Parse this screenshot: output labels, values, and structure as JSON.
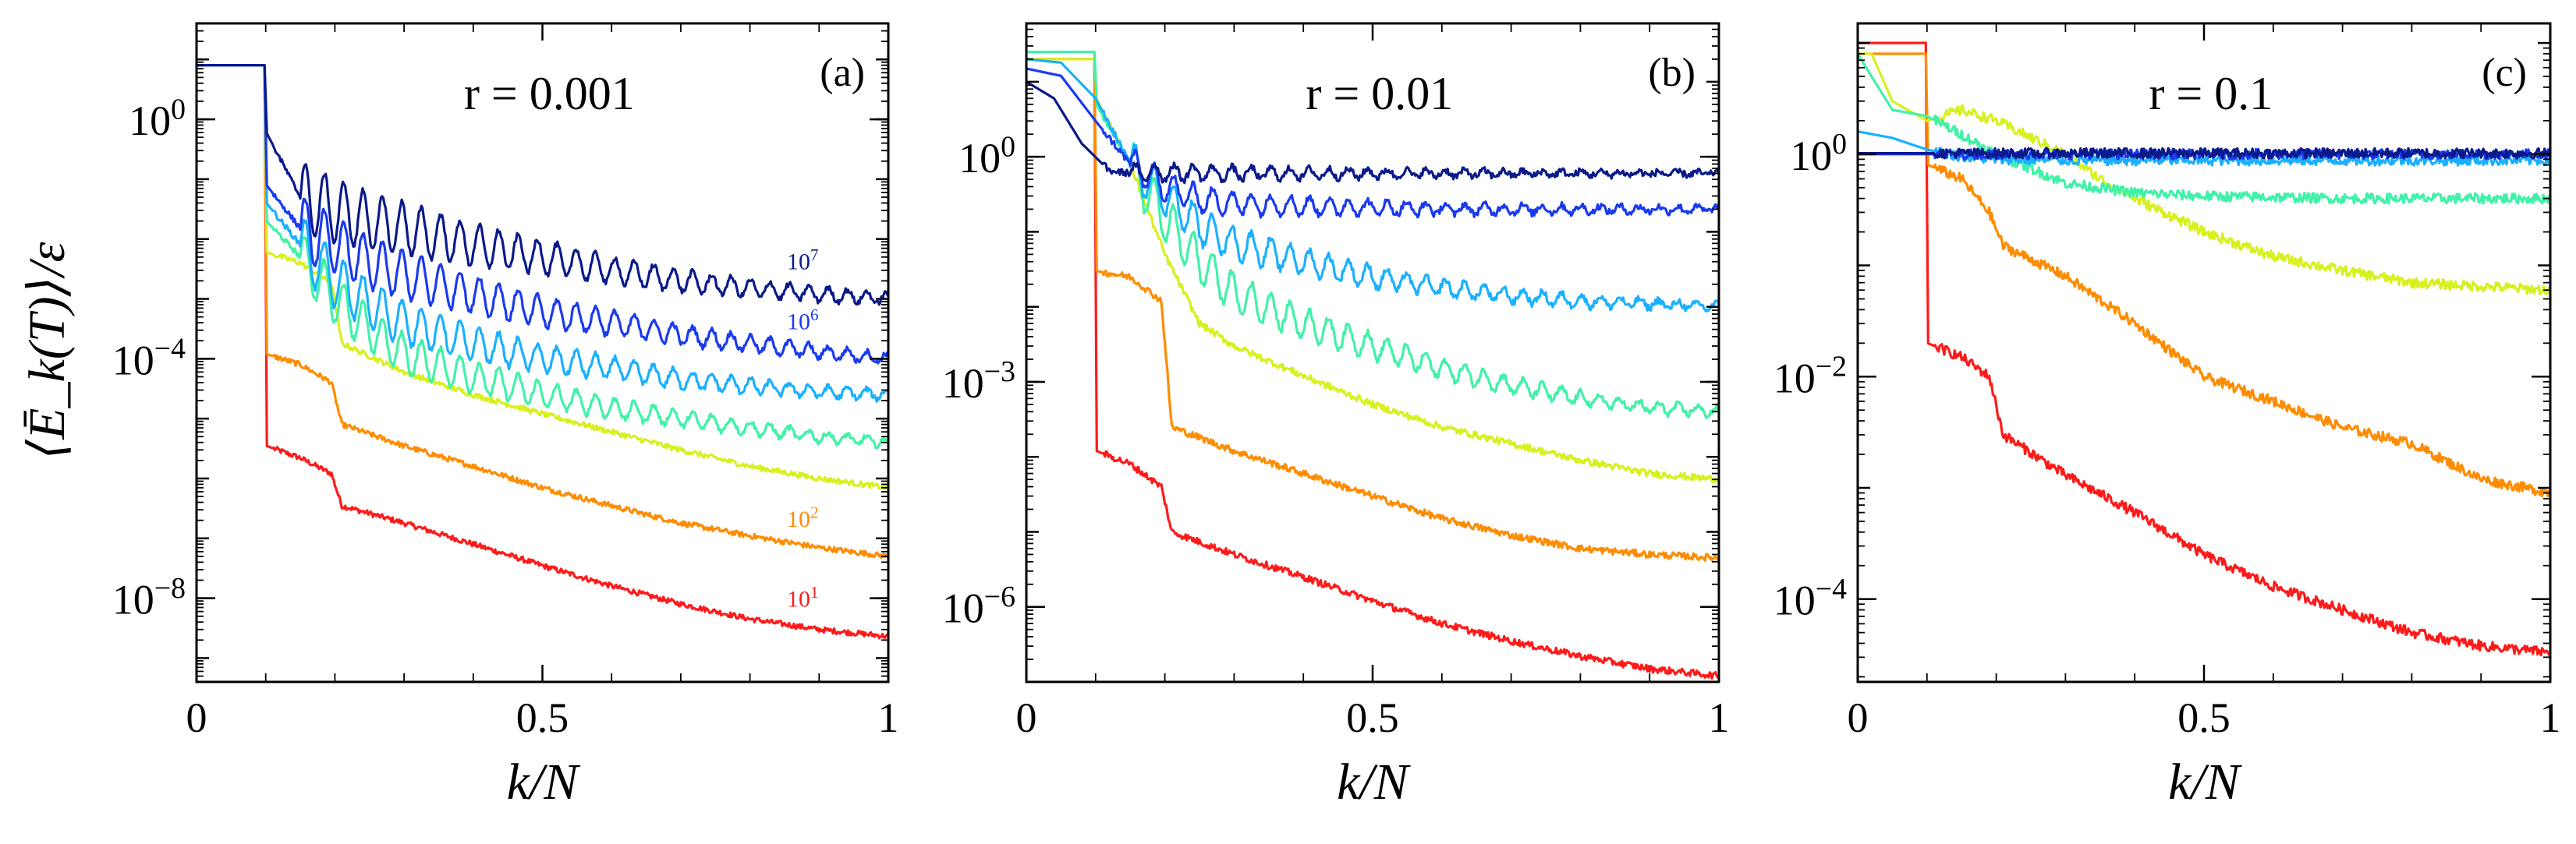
{
  "ylabel": "⟨Ē_k(T)⟩/ε",
  "chart_data": [
    {
      "type": "line",
      "panel": "(a)",
      "param": "r = 0.001",
      "xlabel": "k/N",
      "xlim": [
        0,
        1
      ],
      "xticks": [
        {
          "v": 0,
          "t": "0"
        },
        {
          "v": 0.5,
          "t": "0.5"
        },
        {
          "v": 1,
          "t": "1"
        }
      ],
      "ylog": true,
      "ylim": [
        4e-10,
        40
      ],
      "yticks": [
        {
          "e": 0,
          "t": "10^0"
        },
        {
          "e": -4,
          "t": "10^-4"
        },
        {
          "e": -8,
          "t": "10^-8"
        }
      ],
      "series": [
        {
          "color": "#ff1a1a",
          "label": "10^1",
          "x": [
            0,
            0.099,
            0.101,
            0.15,
            0.195,
            0.21,
            0.3,
            0.4,
            0.5,
            0.6,
            0.7,
            0.8,
            0.9,
            1.0
          ],
          "y": [
            8,
            8,
            3.5e-06,
            2.2e-06,
            1.2e-06,
            3.5e-07,
            1.8e-07,
            8e-08,
            3.5e-08,
            1.6e-08,
            8e-09,
            4.5e-09,
            3e-09,
            2.3e-09
          ]
        },
        {
          "color": "#ff8c00",
          "label": "10^2",
          "x": [
            0,
            0.099,
            0.101,
            0.15,
            0.195,
            0.21,
            0.3,
            0.4,
            0.5,
            0.6,
            0.7,
            0.8,
            0.9,
            1.0
          ],
          "y": [
            8,
            8,
            0.00012,
            8e-05,
            4e-05,
            8e-06,
            3.5e-06,
            1.6e-06,
            7e-07,
            3.5e-07,
            1.8e-07,
            1.1e-07,
            7e-08,
            5e-08
          ]
        },
        {
          "color": "#d8f020",
          "x": [
            0,
            0.099,
            0.101,
            0.15,
            0.195,
            0.21,
            0.3,
            0.4,
            0.5,
            0.6,
            0.7,
            0.8,
            0.9,
            1.0
          ],
          "y": [
            8,
            8,
            0.006,
            0.004,
            0.0018,
            0.00018,
            6e-05,
            2.5e-05,
            1.2e-05,
            6e-06,
            3e-06,
            1.6e-06,
            1e-06,
            7e-07
          ]
        },
        {
          "color": "#40f2a8",
          "osc": 0.45,
          "x": [
            0,
            0.099,
            0.101,
            0.15,
            0.2,
            0.25,
            0.3,
            0.4,
            0.5,
            0.6,
            0.7,
            0.8,
            0.9,
            1.0
          ],
          "y": [
            8,
            8,
            0.02,
            0.005,
            0.001,
            0.0003,
            0.00012,
            5e-05,
            2.5e-05,
            1.5e-05,
            1e-05,
            7e-06,
            5e-06,
            4e-06
          ]
        },
        {
          "color": "#1ab0ff",
          "osc": 0.5,
          "x": [
            0,
            0.099,
            0.101,
            0.15,
            0.2,
            0.25,
            0.3,
            0.4,
            0.5,
            0.6,
            0.7,
            0.8,
            0.9,
            1.0
          ],
          "y": [
            8,
            8,
            0.04,
            0.008,
            0.002,
            0.0008,
            0.0004,
            0.00018,
            0.0001,
            7e-05,
            4.5e-05,
            3.5e-05,
            2.8e-05,
            2.5e-05
          ]
        },
        {
          "color": "#1a3af0",
          "label": "10^6",
          "osc": 0.55,
          "x": [
            0,
            0.099,
            0.101,
            0.15,
            0.2,
            0.25,
            0.3,
            0.4,
            0.5,
            0.6,
            0.7,
            0.8,
            0.9,
            1.0
          ],
          "y": [
            8,
            8,
            0.08,
            0.015,
            0.008,
            0.004,
            0.0025,
            0.0012,
            0.0006,
            0.0004,
            0.00025,
            0.00018,
            0.00013,
            0.0001
          ]
        },
        {
          "color": "#0a1a8a",
          "label": "10^7",
          "osc": 0.6,
          "x": [
            0,
            0.099,
            0.101,
            0.15,
            0.2,
            0.25,
            0.3,
            0.4,
            0.5,
            0.6,
            0.7,
            0.8,
            0.9,
            1.0
          ],
          "y": [
            8,
            8,
            0.6,
            0.05,
            0.03,
            0.02,
            0.015,
            0.008,
            0.005,
            0.003,
            0.002,
            0.0015,
            0.0012,
            0.001
          ]
        }
      ]
    },
    {
      "type": "line",
      "panel": "(b)",
      "param": "r = 0.01",
      "xlabel": "k/N",
      "xlim": [
        0,
        1
      ],
      "xticks": [
        {
          "v": 0,
          "t": "0"
        },
        {
          "v": 0.5,
          "t": "0.5"
        },
        {
          "v": 1,
          "t": "1"
        }
      ],
      "ylog": true,
      "ylim": [
        1e-07,
        60
      ],
      "yticks": [
        {
          "e": 0,
          "t": "10^0"
        },
        {
          "e": -3,
          "t": "10^-3"
        },
        {
          "e": -6,
          "t": "10^-6"
        }
      ],
      "series": [
        {
          "color": "#ff1a1a",
          "x": [
            0,
            0.099,
            0.101,
            0.15,
            0.195,
            0.21,
            0.3,
            0.4,
            0.5,
            0.6,
            0.7,
            0.8,
            0.9,
            1.0
          ],
          "y": [
            20,
            20,
            0.00012,
            8e-05,
            4e-05,
            1e-05,
            5e-06,
            2.5e-06,
            1.2e-06,
            6e-07,
            3.5e-07,
            2.2e-07,
            1.5e-07,
            1.2e-07
          ]
        },
        {
          "color": "#ff8c00",
          "x": [
            0,
            0.099,
            0.101,
            0.15,
            0.195,
            0.21,
            0.3,
            0.4,
            0.5,
            0.6,
            0.7,
            0.8,
            0.9,
            1.0
          ],
          "y": [
            20,
            20,
            0.03,
            0.025,
            0.012,
            0.00025,
            0.00012,
            6e-05,
            3e-05,
            1.5e-05,
            9e-06,
            6e-06,
            5e-06,
            4.5e-06
          ]
        },
        {
          "color": "#d8f020",
          "x": [
            0,
            0.099,
            0.101,
            0.15,
            0.2,
            0.25,
            0.3,
            0.4,
            0.5,
            0.6,
            0.7,
            0.8,
            0.9,
            1.0
          ],
          "y": [
            20,
            20,
            6,
            0.8,
            0.05,
            0.006,
            0.003,
            0.0012,
            0.0005,
            0.00025,
            0.00015,
            9e-05,
            6e-05,
            5e-05
          ]
        },
        {
          "color": "#40f2a8",
          "osc": 0.35,
          "x": [
            0,
            0.099,
            0.101,
            0.15,
            0.2,
            0.25,
            0.3,
            0.4,
            0.5,
            0.6,
            0.7,
            0.8,
            0.9,
            1.0
          ],
          "y": [
            25,
            25,
            5,
            0.8,
            0.15,
            0.04,
            0.015,
            0.006,
            0.003,
            0.0015,
            0.0009,
            0.0006,
            0.00045,
            0.0004
          ]
        },
        {
          "color": "#1ab0ff",
          "osc": 0.3,
          "x": [
            0,
            0.05,
            0.1,
            0.15,
            0.2,
            0.25,
            0.3,
            0.4,
            0.5,
            0.6,
            0.7,
            0.8,
            0.9,
            1.0
          ],
          "y": [
            20,
            18,
            6,
            0.8,
            0.3,
            0.12,
            0.07,
            0.04,
            0.025,
            0.018,
            0.014,
            0.012,
            0.011,
            0.01
          ]
        },
        {
          "color": "#1a3af0",
          "osc": 0.2,
          "x": [
            0,
            0.05,
            0.1,
            0.15,
            0.2,
            0.25,
            0.3,
            0.4,
            0.5,
            0.6,
            0.7,
            0.8,
            0.9,
            1.0
          ],
          "y": [
            15,
            12,
            3,
            0.8,
            0.4,
            0.27,
            0.24,
            0.22,
            0.21,
            0.2,
            0.2,
            0.2,
            0.2,
            0.2
          ]
        },
        {
          "color": "#0a1a8a",
          "osc": 0.12,
          "x": [
            0,
            0.04,
            0.08,
            0.12,
            0.15,
            0.2,
            0.3,
            0.4,
            0.5,
            0.6,
            0.7,
            0.8,
            0.9,
            1.0
          ],
          "y": [
            10,
            6,
            1.5,
            0.65,
            0.6,
            0.62,
            0.6,
            0.6,
            0.6,
            0.6,
            0.6,
            0.6,
            0.6,
            0.6
          ]
        }
      ]
    },
    {
      "type": "line",
      "panel": "(c)",
      "param": "r = 0.1",
      "xlabel": "k/N",
      "xlim": [
        0,
        1
      ],
      "xticks": [
        {
          "v": 0,
          "t": "0"
        },
        {
          "v": 0.5,
          "t": "0.5"
        },
        {
          "v": 1,
          "t": "1"
        }
      ],
      "ylog": true,
      "ylim": [
        1.8e-05,
        15
      ],
      "yticks": [
        {
          "e": 0,
          "t": "10^0"
        },
        {
          "e": -2,
          "t": "10^-2"
        },
        {
          "e": -4,
          "t": "10^-4"
        }
      ],
      "series": [
        {
          "color": "#ff1a1a",
          "x": [
            0,
            0.099,
            0.101,
            0.15,
            0.19,
            0.21,
            0.3,
            0.4,
            0.5,
            0.6,
            0.7,
            0.8,
            0.9,
            1.0
          ],
          "y": [
            10,
            10,
            0.02,
            0.015,
            0.01,
            0.003,
            0.0013,
            0.0006,
            0.00025,
            0.00013,
            8e-05,
            5e-05,
            3.8e-05,
            3.3e-05
          ]
        },
        {
          "color": "#ff8c00",
          "x": [
            0,
            0.099,
            0.101,
            0.15,
            0.19,
            0.21,
            0.3,
            0.4,
            0.5,
            0.6,
            0.7,
            0.8,
            0.9,
            1.0
          ],
          "y": [
            8,
            8,
            0.8,
            0.6,
            0.3,
            0.15,
            0.08,
            0.03,
            0.01,
            0.006,
            0.0035,
            0.0025,
            0.0012,
            0.0009
          ]
        },
        {
          "color": "#d8f020",
          "x": [
            0,
            0.02,
            0.05,
            0.1,
            0.15,
            0.2,
            0.3,
            0.35,
            0.4,
            0.5,
            0.6,
            0.7,
            0.8,
            1.0
          ],
          "y": [
            8,
            8,
            3,
            2,
            2.5,
            2,
            1,
            0.6,
            0.4,
            0.2,
            0.12,
            0.09,
            0.07,
            0.06
          ]
        },
        {
          "color": "#40f2a8",
          "x": [
            0,
            0.02,
            0.05,
            0.1,
            0.15,
            0.2,
            0.3,
            0.4,
            0.5,
            0.6,
            0.7,
            0.8,
            0.9,
            1.0
          ],
          "y": [
            8,
            5,
            2.5,
            2.2,
            1.5,
            1,
            0.55,
            0.45,
            0.42,
            0.41,
            0.4,
            0.4,
            0.4,
            0.4
          ]
        },
        {
          "color": "#1ab0ff",
          "x": [
            0,
            0.05,
            0.1,
            0.15,
            0.2,
            0.3,
            0.4,
            0.5,
            0.6,
            0.7,
            0.8,
            0.9,
            1.0
          ],
          "y": [
            1.6,
            1.4,
            1.1,
            0.95,
            0.9,
            0.88,
            0.88,
            0.88,
            0.88,
            0.88,
            0.88,
            0.88,
            0.88
          ]
        },
        {
          "color": "#1a3af0",
          "x": [
            0,
            0.1,
            0.2,
            0.3,
            0.4,
            0.5,
            0.6,
            0.7,
            0.8,
            0.9,
            1.0
          ],
          "y": [
            1.0,
            1.0,
            1.0,
            1.0,
            1.0,
            1.0,
            1.0,
            1.0,
            1.0,
            1.0,
            1.0
          ]
        },
        {
          "color": "#0a1a8a",
          "x": [
            0,
            0.1,
            0.2,
            0.3,
            0.4,
            0.5,
            0.6,
            0.7,
            0.8,
            0.9,
            1.0
          ],
          "y": [
            1.02,
            1.02,
            1.02,
            1.02,
            1.02,
            1.02,
            1.02,
            1.02,
            1.02,
            1.02,
            1.02
          ]
        }
      ]
    }
  ]
}
